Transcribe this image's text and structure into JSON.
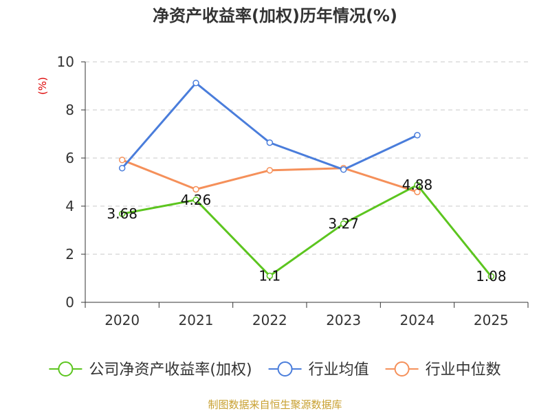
{
  "chart_data": {
    "type": "line",
    "title": "净资产收益率(加权)历年情况(%)",
    "ylabel": "(%)",
    "xlabel": "",
    "categories": [
      "2020",
      "2021",
      "2022",
      "2023",
      "2024",
      "2025"
    ],
    "ylim": [
      0,
      10
    ],
    "yticks": [
      0,
      2,
      4,
      6,
      8,
      10
    ],
    "grid": true,
    "legend_position": "bottom",
    "series": [
      {
        "name": "公司净资产收益率(加权)",
        "color": "#5cc51f",
        "values": [
          3.68,
          4.26,
          1.1,
          3.27,
          4.88,
          1.08
        ],
        "labels": [
          "3.68",
          "4.26",
          "1.1",
          "3.27",
          "4.88",
          "1.08"
        ]
      },
      {
        "name": "行业均值",
        "color": "#4a7ddb",
        "values": [
          5.58,
          9.12,
          6.64,
          5.52,
          6.95,
          null
        ]
      },
      {
        "name": "行业中位数",
        "color": "#f5905a",
        "values": [
          5.92,
          4.7,
          5.49,
          5.58,
          4.59,
          null
        ]
      }
    ],
    "source": "制图数据来自恒生聚源数据库"
  }
}
